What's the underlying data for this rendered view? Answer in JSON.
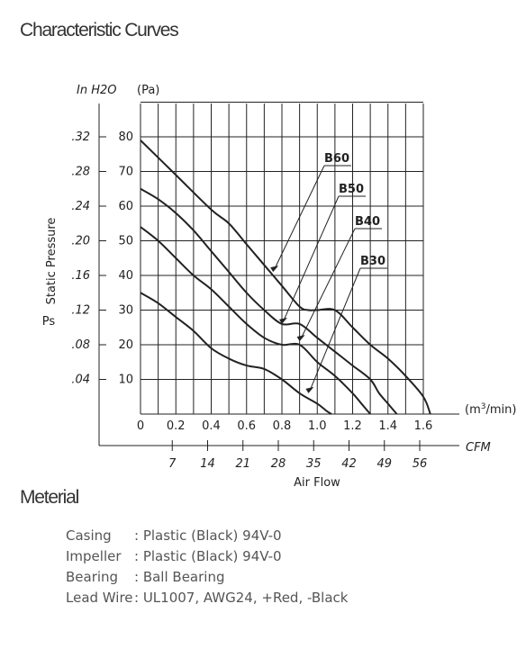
{
  "heading": "Characteristic Curves",
  "material_heading": "Meterial",
  "chart_data": {
    "type": "line",
    "title": "",
    "xlabel": "Air Flow",
    "ylabel": "Static Pressure",
    "ylabel_symbol": "Ps",
    "x_unit": "(m3/min)",
    "x2_unit": "CFM",
    "y_unit": "(Pa)",
    "y2_unit": "In H2O",
    "xlim": [
      0,
      1.6
    ],
    "ylim": [
      0,
      80
    ],
    "x_ticks": [
      "0",
      "0.2",
      "0.4",
      "0.6",
      "0.8",
      "1.0",
      "1.2",
      "1.4",
      "1.6"
    ],
    "y_ticks": [
      "10",
      "20",
      "30",
      "40",
      "50",
      "60",
      "70",
      "80"
    ],
    "y_tick_values": [
      10,
      20,
      30,
      40,
      50,
      60,
      70,
      80
    ],
    "x2_ticks": [
      "7",
      "14",
      "21",
      "28",
      "35",
      "42",
      "49",
      "56"
    ],
    "x2_tick_values": [
      0.2,
      0.4,
      0.6,
      0.8,
      1.0,
      1.2,
      1.4,
      1.6
    ],
    "y2_ticks": [
      ".04",
      ".08",
      ".12",
      ".16",
      ".20",
      ".24",
      ".28",
      ".32"
    ],
    "y2_tick_values": [
      10,
      20,
      30,
      40,
      50,
      60,
      70,
      80
    ],
    "grid": true,
    "series": [
      {
        "name": "B60",
        "x": [
          0,
          0.2,
          0.4,
          0.5,
          0.6,
          0.7,
          0.8,
          0.9,
          0.95,
          1.0,
          1.1,
          1.2,
          1.3,
          1.4,
          1.5,
          1.6,
          1.64
        ],
        "y": [
          79,
          69,
          59,
          55,
          49,
          43,
          37,
          31,
          30,
          30,
          30,
          25,
          20,
          16,
          11,
          5,
          0
        ]
      },
      {
        "name": "B50",
        "x": [
          0,
          0.1,
          0.2,
          0.3,
          0.4,
          0.5,
          0.6,
          0.7,
          0.8,
          0.9,
          1.0,
          1.1,
          1.2,
          1.3,
          1.35,
          1.4,
          1.45
        ],
        "y": [
          65,
          62,
          58,
          53,
          47,
          41,
          35,
          30,
          26,
          26,
          22,
          18,
          14,
          10,
          6,
          3,
          0
        ]
      },
      {
        "name": "B40",
        "x": [
          0,
          0.1,
          0.2,
          0.3,
          0.4,
          0.5,
          0.6,
          0.7,
          0.8,
          0.9,
          1.0,
          1.1,
          1.2,
          1.25,
          1.3
        ],
        "y": [
          54,
          50,
          45,
          40,
          36,
          31,
          26,
          22,
          20,
          20,
          15,
          11,
          6,
          3,
          0
        ]
      },
      {
        "name": "B30",
        "x": [
          0,
          0.1,
          0.2,
          0.3,
          0.4,
          0.5,
          0.6,
          0.7,
          0.8,
          0.9,
          1.0,
          1.05,
          1.08
        ],
        "y": [
          35,
          32,
          28,
          24,
          19,
          16,
          14,
          13,
          10,
          6,
          3,
          1,
          0
        ]
      }
    ],
    "callouts": [
      {
        "series": "B60",
        "label": "B60",
        "at": [
          0.75,
          41
        ]
      },
      {
        "series": "B50",
        "label": "B50",
        "at": [
          0.8,
          26
        ]
      },
      {
        "series": "B40",
        "label": "B40",
        "at": [
          0.9,
          21
        ]
      },
      {
        "series": "B30",
        "label": "B30",
        "at": [
          0.95,
          6
        ]
      }
    ]
  },
  "materials": [
    {
      "label": "Casing",
      "value": ": Plastic (Black) 94V-0"
    },
    {
      "label": "Impeller",
      "value": ": Plastic (Black) 94V-0"
    },
    {
      "label": "Bearing",
      "value": ": Ball Bearing"
    },
    {
      "label": "Lead Wire",
      "value": ": UL1007, AWG24, +Red, -Black"
    }
  ]
}
